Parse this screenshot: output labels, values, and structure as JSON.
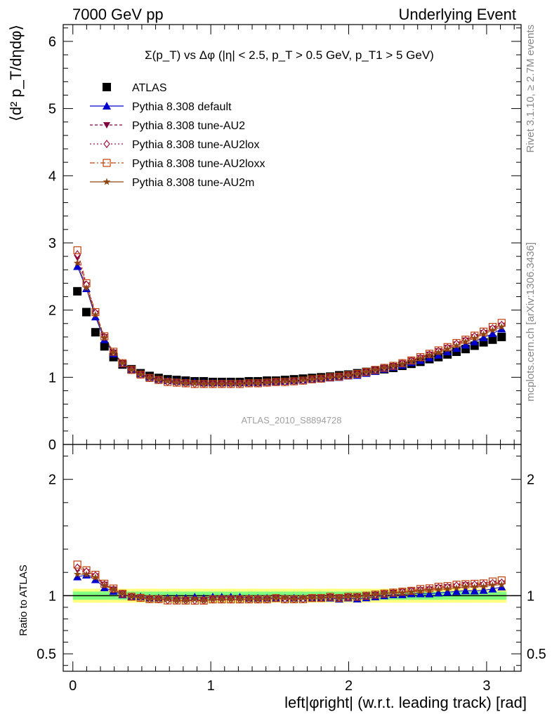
{
  "header": {
    "left": "7000 GeV pp",
    "right": "Underlying Event"
  },
  "plot_title": "Σ(p_T) vs Δφ (|η| < 2.5, p_T > 0.5 GeV, p_T1 > 5 GeV)",
  "side_labels": {
    "rivet": "Rivet 3.1.10, ≥ 2.7M events",
    "mcplots": "mcplots.cern.ch [arXiv:1306.3436]"
  },
  "analysis_id": "ATLAS_2010_S8894728",
  "main_ylabel": "⟨d² p_T/dηdφ⟩",
  "ratio_ylabel": "Ratio to ATLAS",
  "xlabel": "left|φright| (w.r.t. leading track) [rad]",
  "colors": {
    "atlas": "#000000",
    "default": "#0000cc",
    "au2": "#800040",
    "au2lox": "#a0153e",
    "au2loxx": "#c0400a",
    "au2m": "#8b4513",
    "band_yellow": "#ffff80",
    "band_green": "#80ff80"
  },
  "chart_data": [
    {
      "type": "scatter",
      "panel": "main",
      "title": "Σ(p_T) vs Δφ (|η| < 2.5, p_T > 0.5 GeV, p_T1 > 5 GeV)",
      "xlabel": "",
      "ylabel": "⟨d² p_T/dηdφ⟩",
      "xlim": [
        -0.07,
        3.25
      ],
      "ylim": [
        0,
        6.25
      ],
      "yticks": [
        0,
        1,
        2,
        3,
        4,
        5,
        6
      ],
      "legend_position": "top-left",
      "x": [
        0.0327,
        0.0982,
        0.1636,
        0.2291,
        0.2945,
        0.36,
        0.4254,
        0.4909,
        0.5563,
        0.6218,
        0.6872,
        0.7527,
        0.8181,
        0.8836,
        0.949,
        1.0145,
        1.0799,
        1.1454,
        1.2108,
        1.2763,
        1.3417,
        1.4072,
        1.4726,
        1.5381,
        1.6035,
        1.669,
        1.7344,
        1.7999,
        1.8653,
        1.9308,
        1.9962,
        2.0617,
        2.1271,
        2.1926,
        2.258,
        2.3235,
        2.3889,
        2.4544,
        2.5198,
        2.5853,
        2.6507,
        2.7162,
        2.7816,
        2.8471,
        2.9125,
        2.978,
        3.0434,
        3.1089
      ],
      "series": [
        {
          "name": "ATLAS",
          "marker": "square",
          "values": [
            2.28,
            1.97,
            1.67,
            1.46,
            1.3,
            1.19,
            1.12,
            1.06,
            1.02,
            0.99,
            0.97,
            0.96,
            0.95,
            0.94,
            0.94,
            0.93,
            0.93,
            0.93,
            0.93,
            0.94,
            0.94,
            0.95,
            0.95,
            0.96,
            0.97,
            0.98,
            0.99,
            1.0,
            1.01,
            1.03,
            1.04,
            1.06,
            1.08,
            1.1,
            1.12,
            1.14,
            1.17,
            1.2,
            1.23,
            1.27,
            1.3,
            1.34,
            1.38,
            1.42,
            1.47,
            1.52,
            1.56,
            1.6
          ]
        },
        {
          "name": "Pythia 8.308 default",
          "marker": "triangle-up",
          "values": [
            2.65,
            2.32,
            1.9,
            1.56,
            1.35,
            1.2,
            1.11,
            1.05,
            1.0,
            0.97,
            0.95,
            0.94,
            0.93,
            0.93,
            0.92,
            0.92,
            0.92,
            0.92,
            0.92,
            0.92,
            0.92,
            0.93,
            0.93,
            0.94,
            0.95,
            0.96,
            0.97,
            0.98,
            0.99,
            1.0,
            1.02,
            1.03,
            1.06,
            1.09,
            1.12,
            1.15,
            1.18,
            1.22,
            1.25,
            1.29,
            1.33,
            1.38,
            1.43,
            1.48,
            1.53,
            1.59,
            1.65,
            1.72
          ]
        },
        {
          "name": "Pythia 8.308 tune-AU2",
          "marker": "triangle-down",
          "values": [
            2.78,
            2.37,
            1.95,
            1.6,
            1.37,
            1.21,
            1.11,
            1.04,
            0.99,
            0.96,
            0.93,
            0.92,
            0.91,
            0.9,
            0.9,
            0.9,
            0.9,
            0.9,
            0.9,
            0.91,
            0.91,
            0.92,
            0.93,
            0.93,
            0.94,
            0.95,
            0.97,
            0.98,
            1.0,
            1.01,
            1.03,
            1.05,
            1.08,
            1.11,
            1.14,
            1.17,
            1.21,
            1.25,
            1.29,
            1.34,
            1.39,
            1.44,
            1.49,
            1.55,
            1.6,
            1.66,
            1.72,
            1.77
          ]
        },
        {
          "name": "Pythia 8.308 tune-AU2lox",
          "marker": "diamond",
          "values": [
            2.83,
            2.38,
            1.96,
            1.6,
            1.37,
            1.21,
            1.11,
            1.04,
            0.99,
            0.96,
            0.93,
            0.92,
            0.91,
            0.9,
            0.9,
            0.9,
            0.9,
            0.9,
            0.9,
            0.91,
            0.91,
            0.92,
            0.93,
            0.93,
            0.94,
            0.95,
            0.97,
            0.98,
            1.0,
            1.01,
            1.03,
            1.05,
            1.08,
            1.11,
            1.14,
            1.17,
            1.21,
            1.25,
            1.29,
            1.34,
            1.39,
            1.44,
            1.5,
            1.55,
            1.61,
            1.67,
            1.73,
            1.78
          ]
        },
        {
          "name": "Pythia 8.308 tune-AU2loxx",
          "marker": "open-square",
          "values": [
            2.89,
            2.4,
            1.97,
            1.61,
            1.38,
            1.21,
            1.11,
            1.04,
            0.99,
            0.96,
            0.93,
            0.92,
            0.91,
            0.9,
            0.9,
            0.9,
            0.9,
            0.9,
            0.9,
            0.91,
            0.91,
            0.92,
            0.93,
            0.93,
            0.94,
            0.95,
            0.97,
            0.98,
            1.0,
            1.01,
            1.03,
            1.05,
            1.08,
            1.11,
            1.14,
            1.17,
            1.21,
            1.25,
            1.3,
            1.35,
            1.4,
            1.45,
            1.51,
            1.56,
            1.62,
            1.68,
            1.75,
            1.81
          ]
        },
        {
          "name": "Pythia 8.308 tune-AU2m",
          "marker": "star",
          "values": [
            2.7,
            2.33,
            1.93,
            1.59,
            1.37,
            1.21,
            1.11,
            1.04,
            0.99,
            0.96,
            0.94,
            0.92,
            0.91,
            0.91,
            0.9,
            0.9,
            0.9,
            0.9,
            0.9,
            0.91,
            0.91,
            0.92,
            0.93,
            0.94,
            0.94,
            0.96,
            0.97,
            0.98,
            1.0,
            1.01,
            1.03,
            1.05,
            1.08,
            1.11,
            1.14,
            1.17,
            1.2,
            1.24,
            1.28,
            1.33,
            1.37,
            1.42,
            1.47,
            1.53,
            1.58,
            1.64,
            1.7,
            1.75
          ]
        }
      ]
    },
    {
      "type": "scatter",
      "panel": "ratio",
      "xlabel": "left|φright| (w.r.t. leading track) [rad]",
      "ylabel": "Ratio to ATLAS",
      "xlim": [
        -0.07,
        3.25
      ],
      "ylim": [
        0.35,
        2.3
      ],
      "yticks": [
        0.5,
        1,
        2
      ],
      "xticks": [
        0,
        1,
        2,
        3
      ],
      "uncertainty_bands": {
        "inner_green": 0.035,
        "outer_yellow": 0.06
      },
      "series_ratio_of": "main"
    }
  ]
}
